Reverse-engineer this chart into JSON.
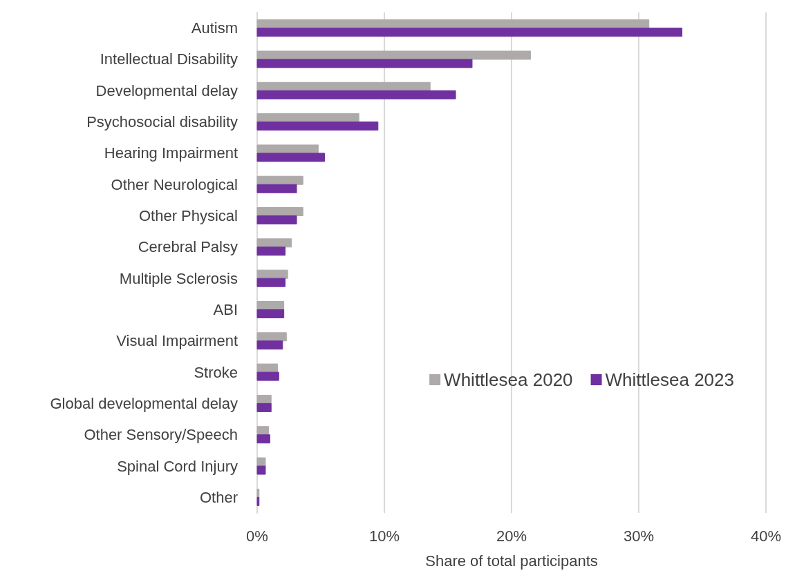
{
  "chart_data": {
    "type": "bar",
    "orientation": "horizontal",
    "xlabel": "Share of total participants",
    "categories": [
      "Autism",
      "Intellectual Disability",
      "Developmental delay",
      "Psychosocial disability",
      "Hearing Impairment",
      "Other Neurological",
      "Other Physical",
      "Cerebral Palsy",
      "Multiple Sclerosis",
      "ABI",
      "Visual Impairment",
      "Stroke",
      "Global developmental delay",
      "Other Sensory/Speech",
      "Spinal Cord Injury",
      "Other"
    ],
    "series": [
      {
        "name": "Whittlesea 2020",
        "color": "#aeaaaa",
        "values": [
          30.8,
          21.5,
          13.6,
          8.0,
          4.8,
          3.6,
          3.6,
          2.7,
          2.4,
          2.1,
          2.3,
          1.6,
          1.1,
          0.9,
          0.65,
          0.15
        ]
      },
      {
        "name": "Whittlesea 2023",
        "color": "#7030a0",
        "values": [
          33.4,
          16.9,
          15.6,
          9.5,
          5.3,
          3.1,
          3.1,
          2.2,
          2.2,
          2.1,
          2.0,
          1.7,
          1.1,
          1.0,
          0.65,
          0.15
        ]
      }
    ],
    "xlim": [
      0,
      40
    ],
    "xticks": [
      {
        "value": 0,
        "label": "0%"
      },
      {
        "value": 10,
        "label": "10%"
      },
      {
        "value": 20,
        "label": "20%"
      },
      {
        "value": 30,
        "label": "30%"
      },
      {
        "value": 40,
        "label": "40%"
      }
    ],
    "grid": "x",
    "legend": "right"
  }
}
